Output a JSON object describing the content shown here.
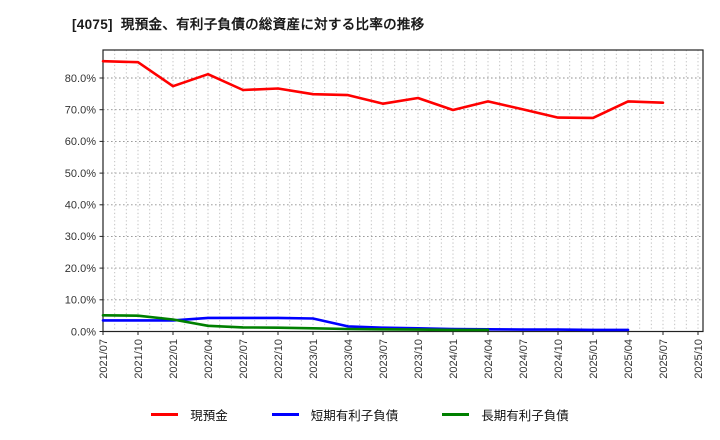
{
  "title": "[4075]  現預金、有利子負債の総資産に対する比率の推移",
  "chart_data": {
    "type": "line",
    "title": "[4075]  現預金、有利子負債の総資産に対する比率の推移",
    "x_tick_labels": [
      "2021/07",
      "2021/10",
      "2022/01",
      "2022/04",
      "2022/07",
      "2022/10",
      "2023/01",
      "2023/04",
      "2023/07",
      "2023/10",
      "2024/01",
      "2024/04",
      "2024/07",
      "2024/10",
      "2025/01",
      "2025/04",
      "2025/07",
      "2025/10"
    ],
    "x_tick_month_index": [
      0,
      3,
      6,
      9,
      12,
      15,
      18,
      21,
      24,
      27,
      30,
      33,
      36,
      39,
      42,
      45,
      48,
      51
    ],
    "y_tick_labels": [
      "0.0%",
      "10.0%",
      "20.0%",
      "30.0%",
      "40.0%",
      "50.0%",
      "60.0%",
      "70.0%",
      "80.0%"
    ],
    "y_tick_values": [
      0,
      10,
      20,
      30,
      40,
      50,
      60,
      70,
      80
    ],
    "ylim": [
      0,
      88.8
    ],
    "grid": "dotted",
    "legend_position": "bottom",
    "series": [
      {
        "name": "現預金",
        "color": "#ff0000",
        "x_months": [
          0,
          3,
          6,
          9,
          12,
          15,
          18,
          21,
          24,
          27,
          30,
          33,
          36,
          39,
          42,
          45,
          48
        ],
        "values": [
          85.3,
          85.0,
          77.4,
          81.2,
          76.2,
          76.7,
          74.9,
          74.6,
          71.9,
          73.7,
          69.9,
          72.6,
          70.1,
          67.5,
          67.4,
          72.6,
          72.2
        ]
      },
      {
        "name": "短期有利子負債",
        "color": "#0000ff",
        "x_months": [
          0,
          3,
          6,
          9,
          12,
          15,
          18,
          21,
          24,
          27,
          30,
          33,
          36,
          39,
          42,
          45
        ],
        "values": [
          3.5,
          3.5,
          3.5,
          4.3,
          4.3,
          4.3,
          4.1,
          1.6,
          1.2,
          1.0,
          0.8,
          0.7,
          0.6,
          0.6,
          0.5,
          0.5
        ]
      },
      {
        "name": "長期有利子負債",
        "color": "#008000",
        "x_months": [
          0,
          3,
          6,
          9,
          12,
          15,
          18,
          21,
          24,
          27,
          30,
          33
        ],
        "values": [
          5.1,
          5.0,
          3.8,
          1.8,
          1.3,
          1.2,
          1.0,
          0.8,
          0.7,
          0.6,
          0.5,
          0.5
        ]
      }
    ]
  }
}
